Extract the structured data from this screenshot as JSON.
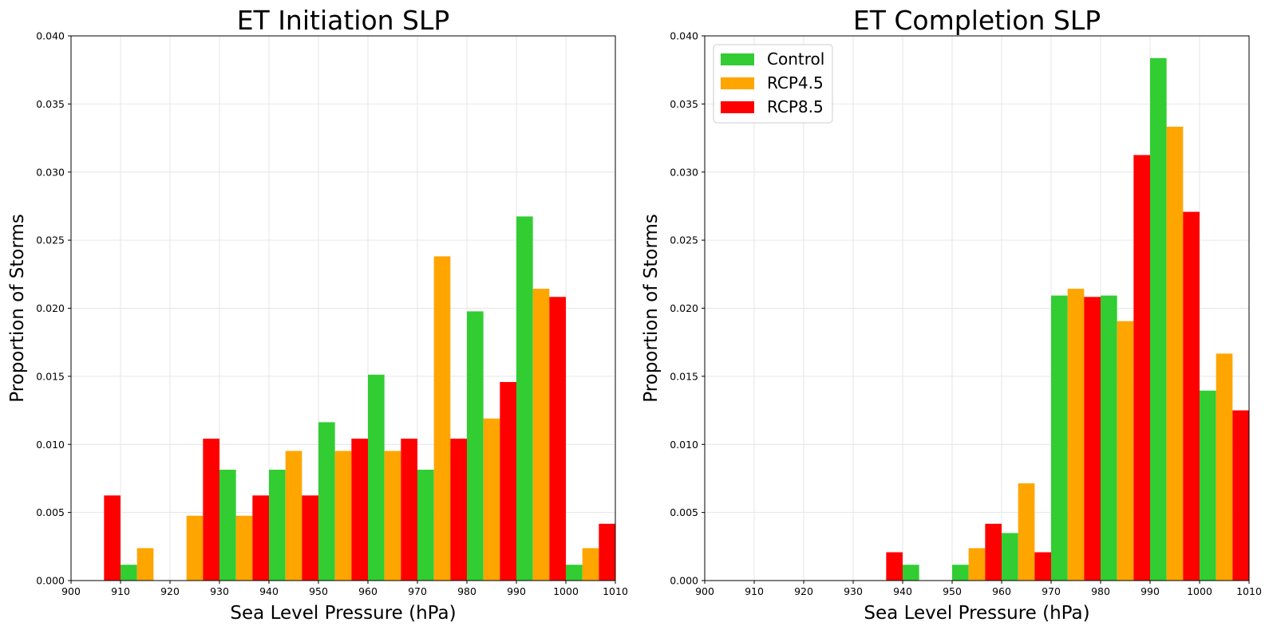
{
  "chart_data": [
    {
      "type": "bar",
      "title": "ET Initiation SLP",
      "xlabel": "Sea Level Pressure (hPa)",
      "ylabel": "Proportion of Storms",
      "xlim": [
        900,
        1010
      ],
      "ylim": [
        0,
        0.04
      ],
      "xticks": [
        900,
        910,
        920,
        930,
        940,
        950,
        960,
        970,
        980,
        990,
        1000,
        1010
      ],
      "xtick_labels": [
        "900",
        "910",
        "920",
        "930",
        "940",
        "950",
        "960",
        "970",
        "980",
        "990",
        "1000",
        "1010"
      ],
      "yticks": [
        0,
        0.005,
        0.01,
        0.015,
        0.02,
        0.025,
        0.03,
        0.035,
        0.04
      ],
      "ytick_labels": [
        "0.000",
        "0.005",
        "0.010",
        "0.015",
        "0.020",
        "0.025",
        "0.030",
        "0.035",
        "0.040"
      ],
      "grid": true,
      "legend": null,
      "bin_edges": [
        900,
        910,
        920,
        930,
        940,
        950,
        960,
        970,
        980,
        990,
        1000,
        1010
      ],
      "series": [
        {
          "name": "Control",
          "color": "#32cd32",
          "values": [
            0,
            0.00116,
            0,
            0.00814,
            0.00814,
            0.01163,
            0.01512,
            0.00814,
            0.01977,
            0.02674,
            0.00116
          ]
        },
        {
          "name": "RCP4.5",
          "color": "#ffa500",
          "values": [
            0,
            0.00238,
            0.00476,
            0.00476,
            0.00952,
            0.00952,
            0.00952,
            0.02381,
            0.0119,
            0.02143,
            0.00238
          ]
        },
        {
          "name": "RCP8.5",
          "color": "#ff0000",
          "values": [
            0.00625,
            0,
            0.01042,
            0.00625,
            0.00625,
            0.01042,
            0.01042,
            0.01042,
            0.01458,
            0.02083,
            0.00417
          ]
        }
      ]
    },
    {
      "type": "bar",
      "title": "ET Completion SLP",
      "xlabel": "Sea Level Pressure (hPa)",
      "ylabel": "Proportion of Storms",
      "xlim": [
        900,
        1010
      ],
      "ylim": [
        0,
        0.04
      ],
      "xticks": [
        900,
        910,
        920,
        930,
        940,
        950,
        960,
        970,
        980,
        990,
        1000,
        1010
      ],
      "xtick_labels": [
        "900",
        "910",
        "920",
        "930",
        "940",
        "950",
        "960",
        "970",
        "980",
        "990",
        "1000",
        "1010"
      ],
      "yticks": [
        0,
        0.005,
        0.01,
        0.015,
        0.02,
        0.025,
        0.03,
        0.035,
        0.04
      ],
      "ytick_labels": [
        "0.000",
        "0.005",
        "0.010",
        "0.015",
        "0.020",
        "0.025",
        "0.030",
        "0.035",
        "0.040"
      ],
      "grid": true,
      "legend": "top-left",
      "bin_edges": [
        900,
        910,
        920,
        930,
        940,
        950,
        960,
        970,
        980,
        990,
        1000,
        1010
      ],
      "series": [
        {
          "name": "Control",
          "color": "#32cd32",
          "values": [
            0,
            0,
            0,
            0,
            0.00116,
            0.00116,
            0.00349,
            0.02093,
            0.02093,
            0.03837,
            0.01395
          ]
        },
        {
          "name": "RCP4.5",
          "color": "#ffa500",
          "values": [
            0,
            0,
            0,
            0,
            0,
            0.00238,
            0.00714,
            0.02143,
            0.01905,
            0.03333,
            0.01667
          ]
        },
        {
          "name": "RCP8.5",
          "color": "#ff0000",
          "values": [
            0,
            0,
            0,
            0.00208,
            0,
            0.00417,
            0.00208,
            0.02083,
            0.03125,
            0.02708,
            0.0125
          ]
        }
      ]
    }
  ]
}
